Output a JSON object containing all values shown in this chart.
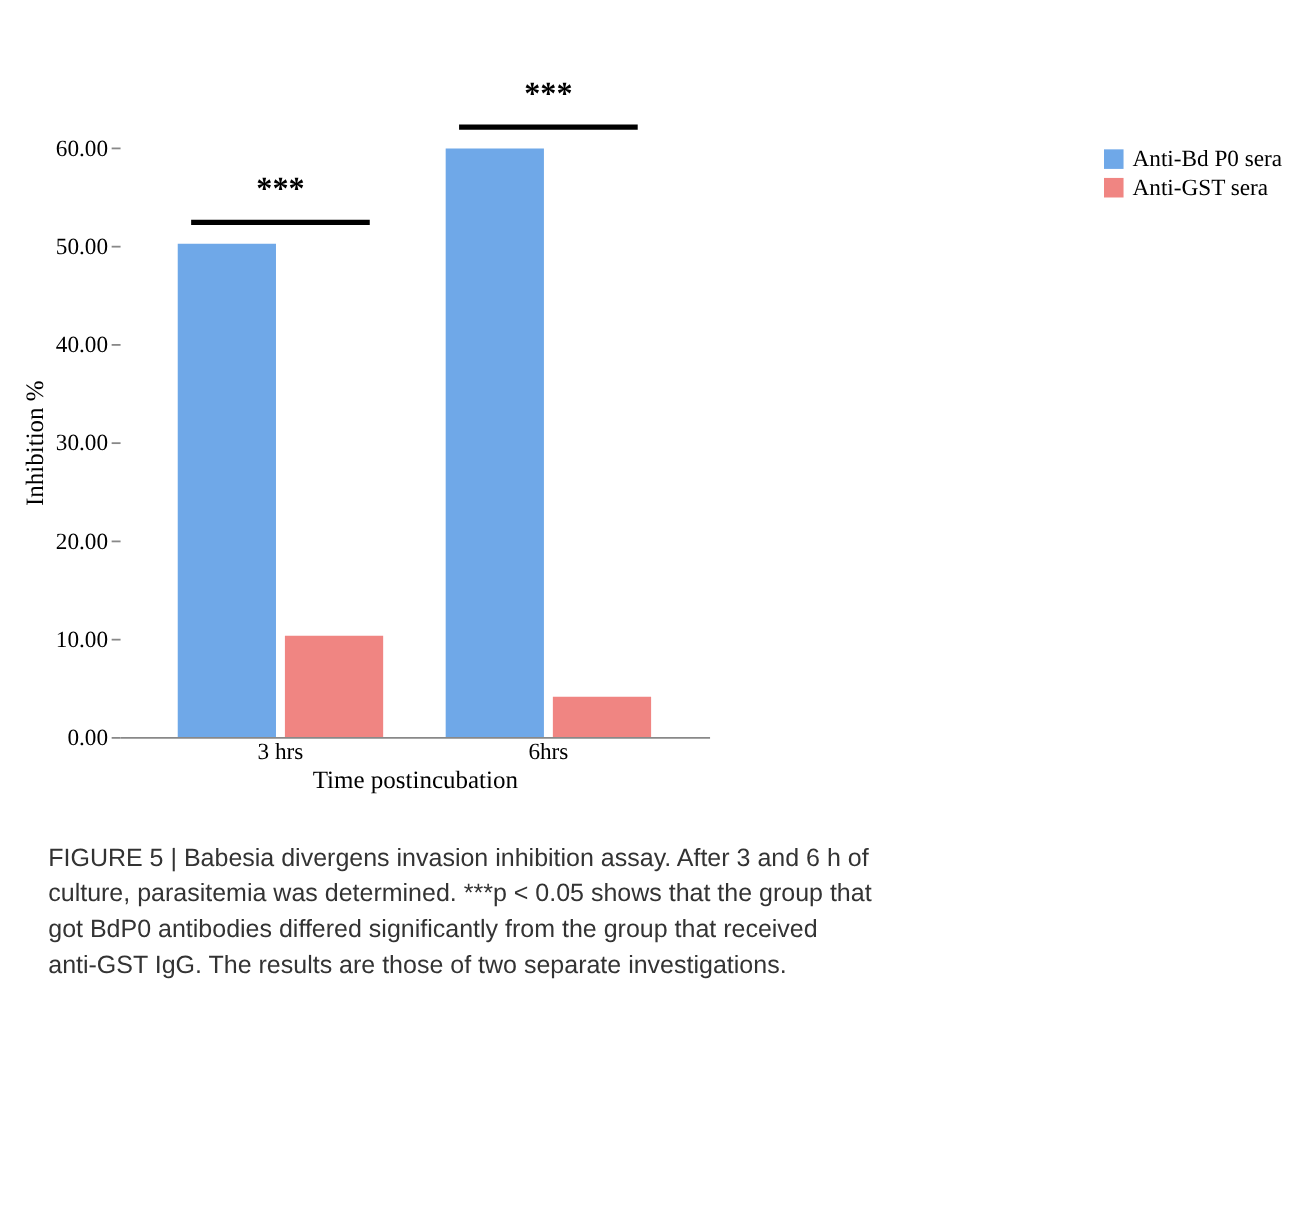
{
  "chart_data": {
    "type": "bar",
    "xlabel": "Time postincubation",
    "ylabel": "Inhibition %",
    "categories": [
      "3 hrs",
      "6hrs"
    ],
    "series": [
      {
        "name": "Anti-Bd P0 sera",
        "color": "#6fa8e8",
        "values": [
          50.2,
          59.9
        ]
      },
      {
        "name": "Anti-GST sera",
        "color": "#f08582",
        "values": [
          10.3,
          4.1
        ]
      }
    ],
    "ylim": [
      0,
      60
    ],
    "yticks": [
      {
        "value": 0,
        "label": "0.00"
      },
      {
        "value": 10,
        "label": "10.00"
      },
      {
        "value": 20,
        "label": "20.00"
      },
      {
        "value": 30,
        "label": "30.00"
      },
      {
        "value": 40,
        "label": "40.00"
      },
      {
        "value": 50,
        "label": "50.00"
      },
      {
        "value": 60,
        "label": "60.00"
      }
    ],
    "grid": false,
    "legend": "top right",
    "annotations": [
      "***",
      "***",
      "FIGURE 5 | Babesia divergens invasion inhibition assay. After 3 and 6 h of culture, parasitemia was determined. ***p < 0.05 shows that the group that got BdP0 antibodies differed significantly from the group that received anti-GST IgG. The results are those of two separate investigations."
    ]
  }
}
